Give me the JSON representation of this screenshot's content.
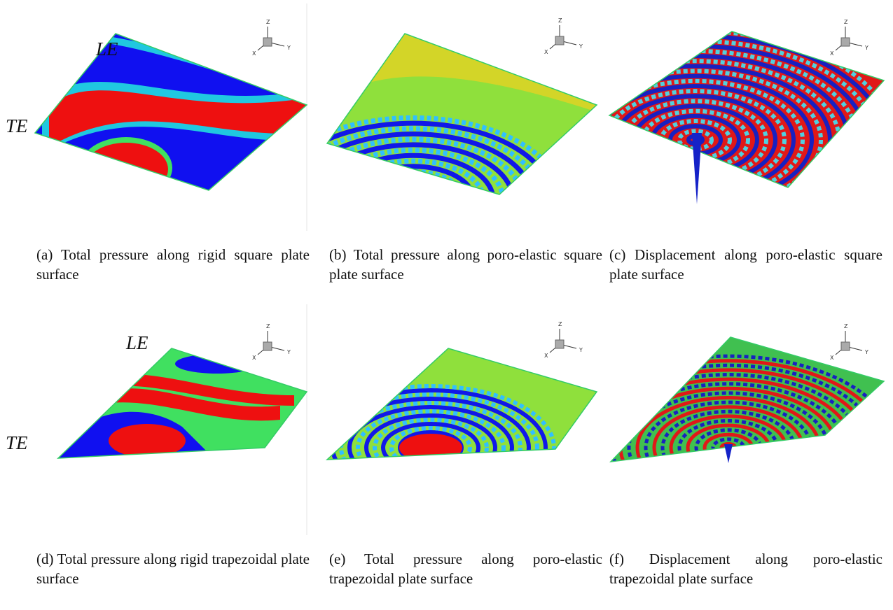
{
  "panels": [
    {
      "caption": "(a) Total pressure along rigid square plate surface",
      "leading_edge": "LE",
      "trailing_edge": "TE"
    },
    {
      "caption": "(b) Total pressure along poro-elastic square plate surface"
    },
    {
      "caption": "(c) Displacement along poro-elastic square plate surface"
    },
    {
      "caption": "(d) Total pressure along rigid trapezoidal plate surface",
      "leading_edge": "LE",
      "trailing_edge": "TE"
    },
    {
      "caption": "(e) Total pressure along poro-elastic trapezoidal plate surface"
    },
    {
      "caption": "(f) Displacement along poro-elastic trapezoidal plate surface"
    }
  ],
  "axis_triad": {
    "x": "X",
    "y": "Y",
    "z": "Z"
  }
}
